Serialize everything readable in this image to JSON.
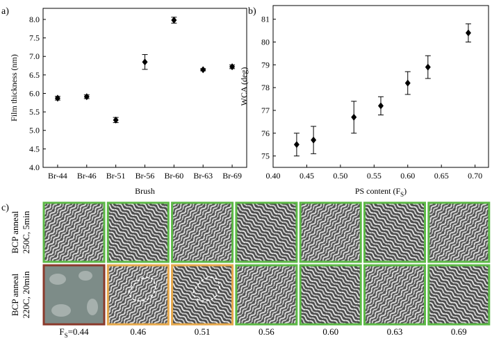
{
  "chart_data": [
    {
      "type": "errorscatter",
      "panel_label": "a)",
      "xlabel": "Brush",
      "ylabel": "Film thickness (nm)",
      "categories": [
        "Br-44",
        "Br-46",
        "Br-51",
        "Br-56",
        "Br-60",
        "Br-63",
        "Br-69"
      ],
      "values": [
        5.87,
        5.91,
        5.28,
        6.85,
        7.98,
        6.64,
        6.72
      ],
      "errors": [
        0.05,
        0.05,
        0.07,
        0.2,
        0.08,
        0.03,
        0.05
      ],
      "color": "#000000",
      "ylim": [
        4.0,
        8.3
      ],
      "yticks": [
        {
          "value": 4,
          "label": "4.0"
        },
        {
          "value": 4.5,
          "label": "4.5"
        },
        {
          "value": 5,
          "label": "5.0"
        },
        {
          "value": 5.5,
          "label": "5.5"
        },
        {
          "value": 6,
          "label": "6.0"
        },
        {
          "value": 6.5,
          "label": "6.5"
        },
        {
          "value": 7,
          "label": "7.0"
        },
        {
          "value": 7.5,
          "label": "7.5"
        },
        {
          "value": 8,
          "label": "8.0"
        }
      ]
    },
    {
      "type": "errorscatter",
      "panel_label": "b)",
      "xlabel": "PS content (F",
      "xlabel_sub": "S",
      "xlabel_end": ")",
      "ylabel": "WCA (deg)",
      "x": [
        0.435,
        0.46,
        0.52,
        0.56,
        0.6,
        0.63,
        0.69
      ],
      "values": [
        75.5,
        75.7,
        76.7,
        77.2,
        78.2,
        78.9,
        80.4
      ],
      "errors": [
        0.5,
        0.6,
        0.7,
        0.4,
        0.5,
        0.5,
        0.4
      ],
      "color": "#000000",
      "xlim": [
        0.4,
        0.72
      ],
      "xticks": [
        {
          "value": 0.4,
          "label": "0.40"
        },
        {
          "value": 0.45,
          "label": "0.45"
        },
        {
          "value": 0.5,
          "label": "0.50"
        },
        {
          "value": 0.55,
          "label": "0.55"
        },
        {
          "value": 0.6,
          "label": "0.60"
        },
        {
          "value": 0.65,
          "label": "0.65"
        },
        {
          "value": 0.7,
          "label": "0.70"
        }
      ],
      "ylim": [
        74.5,
        81.6
      ],
      "yticks": [
        75,
        76,
        77,
        78,
        79,
        80,
        81
      ]
    }
  ],
  "panel_c": {
    "label": "c)",
    "rows": [
      [
        "BCP anneal",
        "250C, 5min"
      ],
      [
        "BCP anneal",
        "220C, 20min"
      ]
    ],
    "first_column": [
      "F",
      "S",
      "=0.44"
    ],
    "columns": [
      "0.46",
      "0.51",
      "0.56",
      "0.60",
      "0.63",
      "0.69"
    ]
  }
}
